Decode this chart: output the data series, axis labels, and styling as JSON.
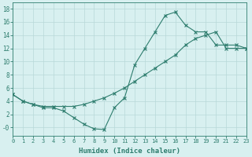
{
  "xlabel": "Humidex (Indice chaleur)",
  "line1_x": [
    0,
    1,
    2,
    3,
    4,
    5,
    6,
    7,
    8,
    9,
    10,
    11,
    12,
    13,
    14,
    15,
    16,
    17,
    18,
    19,
    20,
    21,
    22,
    23
  ],
  "line1_y": [
    5,
    4,
    3.5,
    3,
    3,
    2.5,
    1.5,
    0.5,
    -0.2,
    -0.3,
    3,
    4.5,
    9.5,
    12,
    14.5,
    17,
    17.5,
    15.5,
    14.5,
    14.5,
    12.5,
    12.5,
    12.5,
    12
  ],
  "line2_x": [
    0,
    1,
    2,
    3,
    4,
    5,
    6,
    7,
    8,
    9,
    10,
    11,
    12,
    13,
    14,
    15,
    16,
    17,
    18,
    19,
    20,
    21,
    22,
    23
  ],
  "line2_y": [
    5,
    4,
    3.5,
    3.2,
    3.2,
    3.2,
    3.2,
    3.5,
    4.0,
    4.5,
    5.2,
    6.0,
    7.0,
    8.0,
    9.0,
    10.0,
    11.0,
    12.5,
    13.5,
    14.0,
    14.5,
    12.0,
    12.0,
    12.0
  ],
  "line_color": "#2e7d6e",
  "bg_color": "#d8f0f0",
  "grid_color": "#b8d8d8",
  "xlim": [
    0,
    23
  ],
  "ylim": [
    -1.2,
    19
  ],
  "ytick_vals": [
    0,
    2,
    4,
    6,
    8,
    10,
    12,
    14,
    16,
    18
  ],
  "ytick_labels": [
    "-0",
    "2",
    "4",
    "6",
    "8",
    "10",
    "12",
    "14",
    "16",
    "18"
  ],
  "xticks": [
    0,
    1,
    2,
    3,
    4,
    5,
    6,
    7,
    8,
    9,
    10,
    11,
    12,
    13,
    14,
    15,
    16,
    17,
    18,
    19,
    20,
    21,
    22,
    23
  ],
  "xtick_labels": [
    "0",
    "1",
    "2",
    "3",
    "4",
    "5",
    "6",
    "7",
    "8",
    "9",
    "10",
    "11",
    "12",
    "13",
    "14",
    "15",
    "16",
    "17",
    "18",
    "19",
    "20",
    "21",
    "22",
    "23"
  ]
}
